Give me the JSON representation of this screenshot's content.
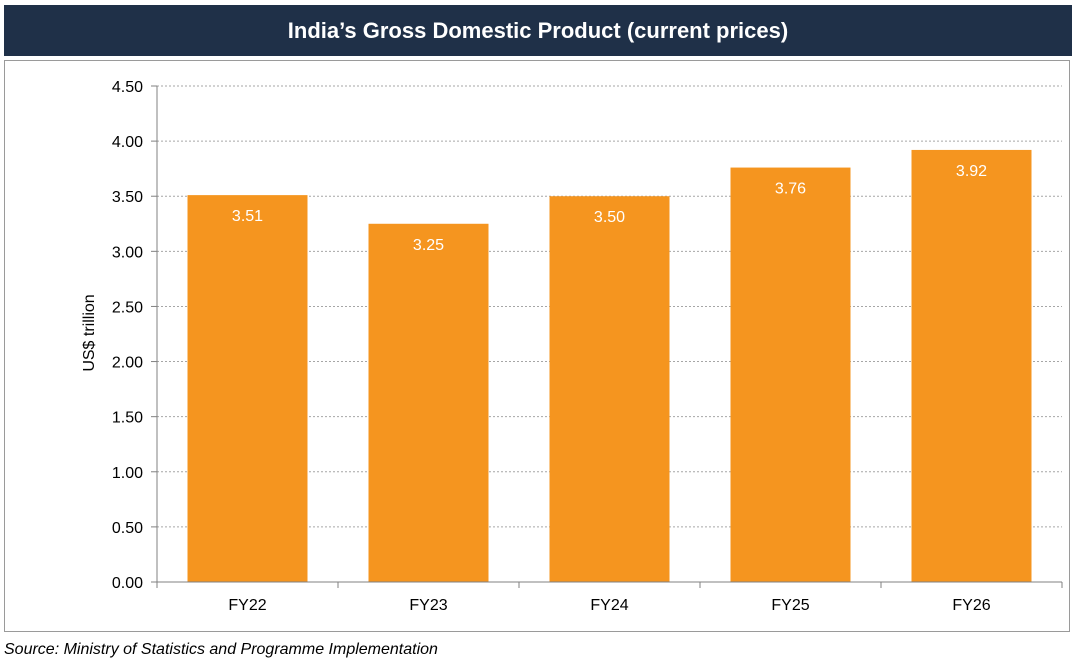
{
  "chart_data": {
    "type": "bar",
    "title": "India’s Gross Domestic Product (current prices)",
    "xlabel": "",
    "ylabel": "US$ trillion",
    "categories": [
      "FY22",
      "FY23",
      "FY24",
      "FY25",
      "FY26"
    ],
    "values": [
      3.51,
      3.25,
      3.5,
      3.76,
      3.92
    ],
    "value_labels": [
      "3.51",
      "3.25",
      "3.50",
      "3.76",
      "3.92"
    ],
    "ylim": [
      0,
      4.5
    ],
    "yticks": [
      "0.00",
      "0.50",
      "1.00",
      "1.50",
      "2.00",
      "2.50",
      "3.00",
      "3.50",
      "4.00",
      "4.50"
    ],
    "grid": "dotted horizontal",
    "bar_color": "#f5951f",
    "header_color": "#1f3048"
  },
  "source": "Source: Ministry of Statistics and Programme Implementation"
}
